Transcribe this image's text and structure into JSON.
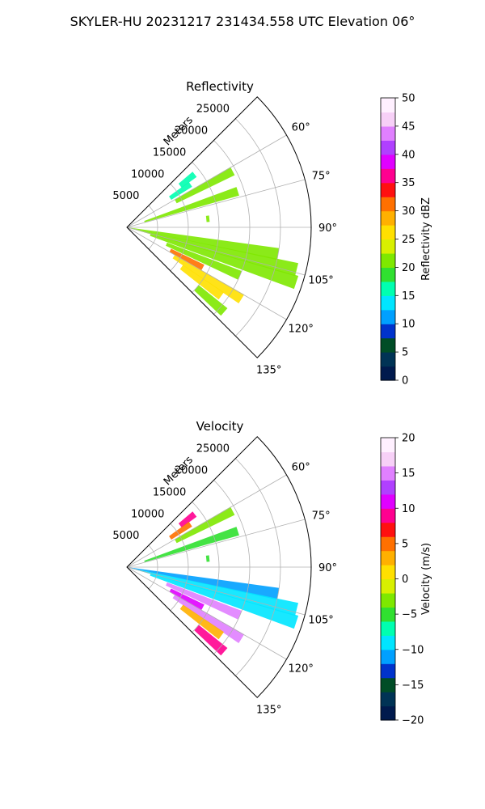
{
  "figure": {
    "title": "SKYLER-HU  20231217  231434.558 UTC Elevation 06°"
  },
  "chart_data": [
    {
      "type": "heatmap",
      "projection": "polar-sector",
      "title": "Reflectivity",
      "range_label": "Meters",
      "range_ticks": [
        "5000",
        "10000",
        "15000",
        "20000",
        "25000"
      ],
      "range_values": [
        5000,
        10000,
        15000,
        20000,
        25000
      ],
      "range_max": 30000,
      "angle_ticks": [
        "60°",
        "75°",
        "90°",
        "105°",
        "120°",
        "135°"
      ],
      "angle_values": [
        60,
        75,
        90,
        105,
        120,
        135
      ],
      "angle_range": [
        45,
        135
      ],
      "grid": true,
      "colorbar": {
        "label": "Reflectivity dBZ",
        "range": [
          0,
          50
        ],
        "ticks": [
          "0",
          "5",
          "10",
          "15",
          "20",
          "25",
          "30",
          "35",
          "40",
          "45",
          "50"
        ],
        "stops": [
          "#001a4d",
          "#003355",
          "#004d26",
          "#0033cc",
          "#00a0ff",
          "#00e5ff",
          "#00ffb0",
          "#30e030",
          "#7ee800",
          "#d8f000",
          "#ffe000",
          "#ffb000",
          "#ff7000",
          "#ff1010",
          "#ff0090",
          "#e000ff",
          "#b040ff",
          "#e080ff",
          "#f7d0f7",
          "#fff0ff"
        ]
      },
      "echoes": [
        {
          "az": 52,
          "r0": 11000,
          "r1": 14000,
          "value": 15
        },
        {
          "az": 56,
          "r0": 8500,
          "r1": 12500,
          "value": 16
        },
        {
          "az": 62,
          "r0": 9000,
          "r1": 19500,
          "value": 20
        },
        {
          "az": 72,
          "r0": 3000,
          "r1": 19000,
          "value": 20
        },
        {
          "az": 84,
          "r0": 13000,
          "r1": 13500,
          "value": 22
        },
        {
          "az": 100,
          "r0": 500,
          "r1": 25000,
          "value": 21
        },
        {
          "az": 104,
          "r0": 1000,
          "r1": 28500,
          "value": 21
        },
        {
          "az": 108,
          "r0": 4000,
          "r1": 29000,
          "value": 20
        },
        {
          "az": 113,
          "r0": 7000,
          "r1": 20000,
          "value": 22
        },
        {
          "az": 118,
          "r0": 8000,
          "r1": 14000,
          "value": 30
        },
        {
          "az": 122,
          "r0": 9000,
          "r1": 22000,
          "value": 25
        },
        {
          "az": 126,
          "r0": 11000,
          "r1": 19000,
          "value": 27
        },
        {
          "az": 131,
          "r0": 15000,
          "r1": 21000,
          "value": 22
        }
      ]
    },
    {
      "type": "heatmap",
      "projection": "polar-sector",
      "title": "Velocity",
      "range_label": "Meters",
      "range_ticks": [
        "5000",
        "10000",
        "15000",
        "20000",
        "25000"
      ],
      "range_values": [
        5000,
        10000,
        15000,
        20000,
        25000
      ],
      "range_max": 30000,
      "angle_ticks": [
        "60°",
        "75°",
        "90°",
        "105°",
        "120°",
        "135°"
      ],
      "angle_values": [
        60,
        75,
        90,
        105,
        120,
        135
      ],
      "angle_range": [
        45,
        135
      ],
      "grid": true,
      "colorbar": {
        "label": "Velocity (m/s)",
        "range": [
          -20,
          20
        ],
        "ticks": [
          "−20",
          "−15",
          "−10",
          "−5",
          "0",
          "5",
          "10",
          "15",
          "20"
        ],
        "stops": [
          "#001a4d",
          "#003355",
          "#004d26",
          "#0033cc",
          "#00a0ff",
          "#00e5ff",
          "#00ffb0",
          "#30e030",
          "#7ee800",
          "#d8f000",
          "#ffe000",
          "#ffb000",
          "#ff7000",
          "#ff1010",
          "#ff0090",
          "#e000ff",
          "#b040ff",
          "#e080ff",
          "#f7d0f7",
          "#fff0ff"
        ]
      },
      "echoes": [
        {
          "az": 52,
          "r0": 11000,
          "r1": 14000,
          "value": 9
        },
        {
          "az": 56,
          "r0": 8500,
          "r1": 12500,
          "value": 5
        },
        {
          "az": 62,
          "r0": 9000,
          "r1": 19500,
          "value": -3
        },
        {
          "az": 72,
          "r0": 3000,
          "r1": 19000,
          "value": -5
        },
        {
          "az": 84,
          "r0": 13000,
          "r1": 13500,
          "value": -6
        },
        {
          "az": 100,
          "r0": 500,
          "r1": 25000,
          "value": -11
        },
        {
          "az": 104,
          "r0": 1000,
          "r1": 28500,
          "value": -10
        },
        {
          "az": 108,
          "r0": 4000,
          "r1": 29000,
          "value": -9
        },
        {
          "az": 113,
          "r0": 7000,
          "r1": 20000,
          "value": 15
        },
        {
          "az": 118,
          "r0": 8000,
          "r1": 14000,
          "value": 10
        },
        {
          "az": 122,
          "r0": 9000,
          "r1": 22000,
          "value": 14
        },
        {
          "az": 126,
          "r0": 11000,
          "r1": 19000,
          "value": 3
        },
        {
          "az": 131,
          "r0": 15000,
          "r1": 21000,
          "value": 9
        }
      ]
    }
  ]
}
